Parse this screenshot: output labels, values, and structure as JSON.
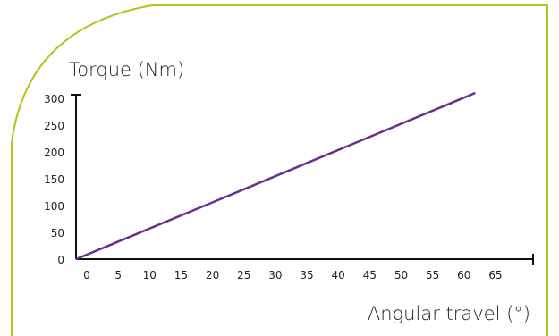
{
  "colors": {
    "frame": "#a8c81e",
    "series": "#6b2d8f",
    "axis": "#111111"
  },
  "chart_data": {
    "type": "line",
    "xlabel": "Angular travel (°)",
    "ylabel": "Torque (Nm)",
    "xlim": [
      0,
      70
    ],
    "ylim": [
      0,
      300
    ],
    "xticks": [
      "0",
      "5",
      "10",
      "15",
      "20",
      "25",
      "30",
      "35",
      "40",
      "45",
      "50",
      "55",
      "60",
      "65"
    ],
    "yticks": [
      "300",
      "250",
      "200",
      "150",
      "100",
      "50",
      "0"
    ],
    "series": [
      {
        "x": [
          0,
          63.5
        ],
        "y": [
          0,
          310
        ]
      }
    ],
    "grid": false,
    "legend": "none"
  }
}
